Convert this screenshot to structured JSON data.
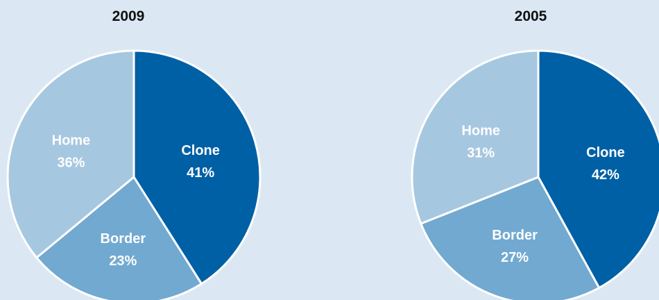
{
  "colors": {
    "background": "#dbe8f3",
    "slice_border": "#ffffff",
    "label_text": "#ffffff",
    "title_text": "#111111"
  },
  "chart_data": [
    {
      "type": "pie",
      "title": "2009",
      "slices": [
        {
          "label": "Clone",
          "value": 41,
          "value_label": "41%",
          "color": "#0060a6"
        },
        {
          "label": "Border",
          "value": 23,
          "value_label": "23%",
          "color": "#72a9d0"
        },
        {
          "label": "Home",
          "value": 36,
          "value_label": "36%",
          "color": "#a6c7e0"
        }
      ]
    },
    {
      "type": "pie",
      "title": "2005",
      "slices": [
        {
          "label": "Clone",
          "value": 42,
          "value_label": "42%",
          "color": "#0060a6"
        },
        {
          "label": "Border",
          "value": 27,
          "value_label": "27%",
          "color": "#72a9d0"
        },
        {
          "label": "Home",
          "value": 31,
          "value_label": "31%",
          "color": "#a6c7e0"
        }
      ]
    }
  ]
}
